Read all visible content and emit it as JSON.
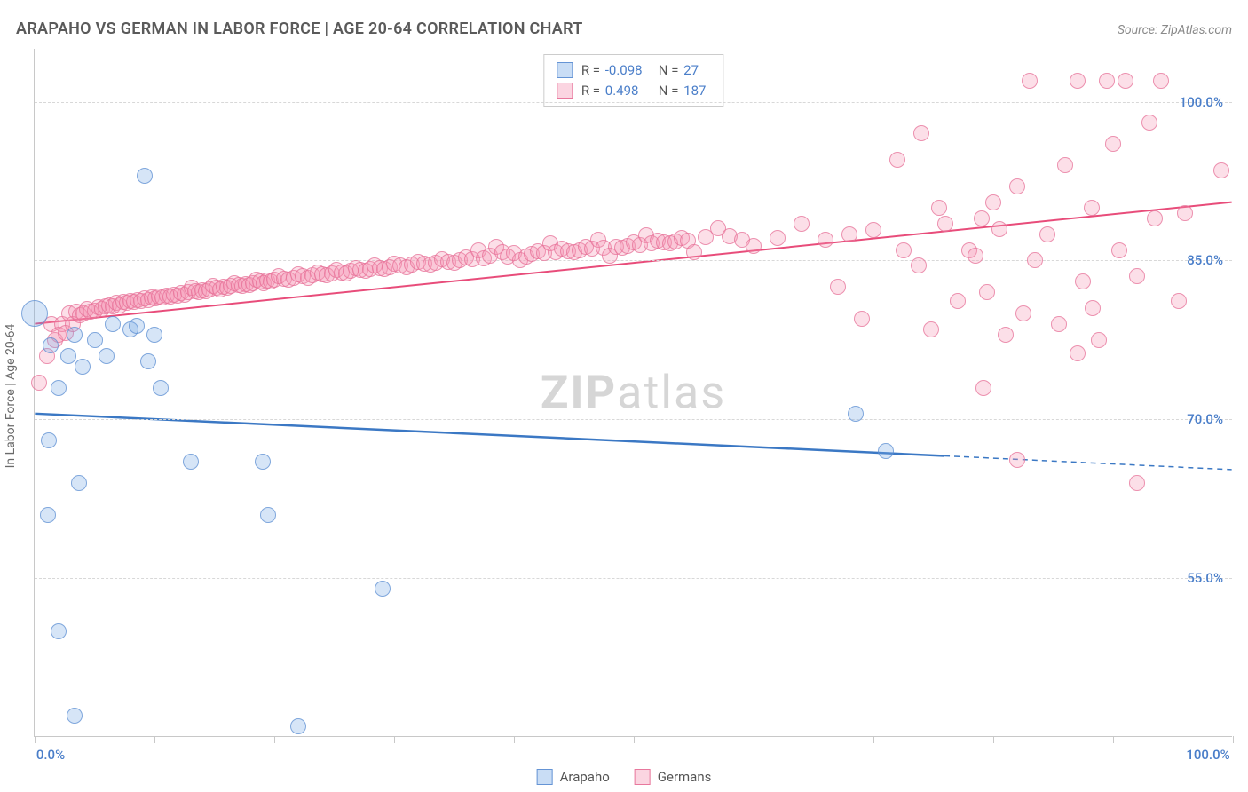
{
  "title": "ARAPAHO VS GERMAN IN LABOR FORCE | AGE 20-64 CORRELATION CHART",
  "source": "Source: ZipAtlas.com",
  "y_axis_title": "In Labor Force | Age 20-64",
  "watermark_a": "ZIP",
  "watermark_b": "atlas",
  "chart": {
    "type": "scatter",
    "xlim": [
      0,
      100
    ],
    "ylim": [
      40,
      105
    ],
    "x_ticks": [
      0,
      10,
      20,
      30,
      40,
      50,
      60,
      70,
      80,
      90,
      100
    ],
    "x_tick_labels": {
      "0": "0.0%",
      "100": "100.0%"
    },
    "y_ticks": [
      55,
      70,
      85,
      100
    ],
    "y_tick_labels": {
      "55": "55.0%",
      "70": "70.0%",
      "85": "85.0%",
      "100": "100.0%"
    },
    "grid_color": "#d8d8d8",
    "axis_color": "#c8c8c8",
    "background_color": "#ffffff",
    "marker_radius": 9,
    "large_marker_radius": 15,
    "series": {
      "arapaho": {
        "label": "Arapaho",
        "color_fill": "rgba(120,170,230,0.3)",
        "color_stroke": "rgba(90,140,210,0.7)",
        "correlation_R": "-0.098",
        "correlation_N": "27",
        "trend_line": {
          "x1": 0,
          "y1": 70.5,
          "x2": 76,
          "y2": 66.5,
          "x3": 100,
          "y3": 65.2,
          "stroke": "#3b78c4",
          "stroke_width": 2.5
        },
        "points": [
          {
            "x": 0,
            "y": 80,
            "r": 15
          },
          {
            "x": 1.3,
            "y": 77
          },
          {
            "x": 1.1,
            "y": 61
          },
          {
            "x": 1.2,
            "y": 68
          },
          {
            "x": 2,
            "y": 50
          },
          {
            "x": 2,
            "y": 73
          },
          {
            "x": 2.8,
            "y": 76
          },
          {
            "x": 3.3,
            "y": 78
          },
          {
            "x": 3.3,
            "y": 42
          },
          {
            "x": 4,
            "y": 75
          },
          {
            "x": 3.7,
            "y": 64
          },
          {
            "x": 5,
            "y": 77.5
          },
          {
            "x": 6,
            "y": 76
          },
          {
            "x": 6.5,
            "y": 79
          },
          {
            "x": 8,
            "y": 78.5
          },
          {
            "x": 8.5,
            "y": 78.8
          },
          {
            "x": 9.2,
            "y": 93
          },
          {
            "x": 9.5,
            "y": 75.5
          },
          {
            "x": 10,
            "y": 78
          },
          {
            "x": 10.5,
            "y": 73
          },
          {
            "x": 13,
            "y": 66
          },
          {
            "x": 19,
            "y": 66
          },
          {
            "x": 19.5,
            "y": 61
          },
          {
            "x": 22,
            "y": 41
          },
          {
            "x": 29,
            "y": 54
          },
          {
            "x": 68.5,
            "y": 70.5
          },
          {
            "x": 71,
            "y": 67
          }
        ]
      },
      "germans": {
        "label": "Germans",
        "color_fill": "rgba(245,150,180,0.3)",
        "color_stroke": "rgba(230,110,150,0.7)",
        "correlation_R": "0.498",
        "correlation_N": "187",
        "trend_line": {
          "x1": 0,
          "y1": 79,
          "x2": 100,
          "y2": 90.5,
          "stroke": "#e84c7a",
          "stroke_width": 2
        },
        "points": [
          {
            "x": 0.4,
            "y": 73.5
          },
          {
            "x": 1,
            "y": 76
          },
          {
            "x": 1.4,
            "y": 79
          },
          {
            "x": 1.7,
            "y": 77.5
          },
          {
            "x": 2,
            "y": 78
          },
          {
            "x": 2.3,
            "y": 79
          },
          {
            "x": 2.6,
            "y": 78.2
          },
          {
            "x": 2.9,
            "y": 80
          },
          {
            "x": 3.2,
            "y": 79
          },
          {
            "x": 3.5,
            "y": 80.2
          },
          {
            "x": 3.8,
            "y": 79.8
          },
          {
            "x": 4.1,
            "y": 80
          },
          {
            "x": 4.4,
            "y": 80.4
          },
          {
            "x": 4.7,
            "y": 80.2
          },
          {
            "x": 5,
            "y": 80.3
          },
          {
            "x": 5.3,
            "y": 80.6
          },
          {
            "x": 5.6,
            "y": 80.4
          },
          {
            "x": 5.9,
            "y": 80.7
          },
          {
            "x": 6.2,
            "y": 80.8
          },
          {
            "x": 6.5,
            "y": 80.7
          },
          {
            "x": 6.8,
            "y": 81
          },
          {
            "x": 7.1,
            "y": 80.8
          },
          {
            "x": 7.4,
            "y": 81.1
          },
          {
            "x": 7.7,
            "y": 81
          },
          {
            "x": 8,
            "y": 81.2
          },
          {
            "x": 8.3,
            "y": 81.1
          },
          {
            "x": 8.6,
            "y": 81.3
          },
          {
            "x": 8.9,
            "y": 81.2
          },
          {
            "x": 9.2,
            "y": 81.4
          },
          {
            "x": 9.5,
            "y": 81.3
          },
          {
            "x": 9.8,
            "y": 81.5
          },
          {
            "x": 10.1,
            "y": 81.4
          },
          {
            "x": 10.4,
            "y": 81.6
          },
          {
            "x": 10.7,
            "y": 81.5
          },
          {
            "x": 11,
            "y": 81.7
          },
          {
            "x": 11.3,
            "y": 81.6
          },
          {
            "x": 11.6,
            "y": 81.8
          },
          {
            "x": 11.9,
            "y": 81.7
          },
          {
            "x": 12.2,
            "y": 81.9
          },
          {
            "x": 12.5,
            "y": 81.8
          },
          {
            "x": 12.8,
            "y": 82
          },
          {
            "x": 13.1,
            "y": 82.4
          },
          {
            "x": 13.4,
            "y": 82.1
          },
          {
            "x": 13.7,
            "y": 82
          },
          {
            "x": 14,
            "y": 82.2
          },
          {
            "x": 14.3,
            "y": 82.1
          },
          {
            "x": 14.6,
            "y": 82.3
          },
          {
            "x": 14.9,
            "y": 82.6
          },
          {
            "x": 15.2,
            "y": 82.4
          },
          {
            "x": 15.5,
            "y": 82.3
          },
          {
            "x": 15.8,
            "y": 82.5
          },
          {
            "x": 16.1,
            "y": 82.4
          },
          {
            "x": 16.4,
            "y": 82.6
          },
          {
            "x": 16.7,
            "y": 82.9
          },
          {
            "x": 17,
            "y": 82.7
          },
          {
            "x": 17.3,
            "y": 82.6
          },
          {
            "x": 17.6,
            "y": 82.8
          },
          {
            "x": 17.9,
            "y": 82.7
          },
          {
            "x": 18.2,
            "y": 82.9
          },
          {
            "x": 18.5,
            "y": 83.2
          },
          {
            "x": 18.8,
            "y": 83
          },
          {
            "x": 19.1,
            "y": 82.9
          },
          {
            "x": 19.4,
            "y": 83.1
          },
          {
            "x": 19.7,
            "y": 83
          },
          {
            "x": 20,
            "y": 83.2
          },
          {
            "x": 20.4,
            "y": 83.5
          },
          {
            "x": 20.8,
            "y": 83.3
          },
          {
            "x": 21.2,
            "y": 83.2
          },
          {
            "x": 21.6,
            "y": 83.4
          },
          {
            "x": 22,
            "y": 83.7
          },
          {
            "x": 22.4,
            "y": 83.5
          },
          {
            "x": 22.8,
            "y": 83.4
          },
          {
            "x": 23.2,
            "y": 83.6
          },
          {
            "x": 23.6,
            "y": 83.9
          },
          {
            "x": 24,
            "y": 83.7
          },
          {
            "x": 24.4,
            "y": 83.6
          },
          {
            "x": 24.8,
            "y": 83.8
          },
          {
            "x": 25.2,
            "y": 84.1
          },
          {
            "x": 25.6,
            "y": 83.9
          },
          {
            "x": 26,
            "y": 83.8
          },
          {
            "x": 26.4,
            "y": 84
          },
          {
            "x": 26.8,
            "y": 84.3
          },
          {
            "x": 27.2,
            "y": 84.1
          },
          {
            "x": 27.6,
            "y": 84
          },
          {
            "x": 28,
            "y": 84.2
          },
          {
            "x": 28.4,
            "y": 84.5
          },
          {
            "x": 28.8,
            "y": 84.3
          },
          {
            "x": 29.2,
            "y": 84.2
          },
          {
            "x": 29.6,
            "y": 84.4
          },
          {
            "x": 30,
            "y": 84.7
          },
          {
            "x": 30.5,
            "y": 84.5
          },
          {
            "x": 31,
            "y": 84.4
          },
          {
            "x": 31.5,
            "y": 84.6
          },
          {
            "x": 32,
            "y": 84.9
          },
          {
            "x": 32.5,
            "y": 84.7
          },
          {
            "x": 33,
            "y": 84.6
          },
          {
            "x": 33.5,
            "y": 84.8
          },
          {
            "x": 34,
            "y": 85.1
          },
          {
            "x": 34.5,
            "y": 84.9
          },
          {
            "x": 35,
            "y": 84.8
          },
          {
            "x": 35.5,
            "y": 85
          },
          {
            "x": 36,
            "y": 85.3
          },
          {
            "x": 36.5,
            "y": 85.1
          },
          {
            "x": 37,
            "y": 86
          },
          {
            "x": 37.5,
            "y": 85.2
          },
          {
            "x": 38,
            "y": 85.5
          },
          {
            "x": 38.5,
            "y": 86.3
          },
          {
            "x": 39,
            "y": 85.8
          },
          {
            "x": 39.5,
            "y": 85.4
          },
          {
            "x": 40,
            "y": 85.7
          },
          {
            "x": 40.5,
            "y": 85
          },
          {
            "x": 41,
            "y": 85.4
          },
          {
            "x": 41.5,
            "y": 85.6
          },
          {
            "x": 42,
            "y": 85.9
          },
          {
            "x": 42.5,
            "y": 85.7
          },
          {
            "x": 43,
            "y": 86.6
          },
          {
            "x": 43.5,
            "y": 85.8
          },
          {
            "x": 44,
            "y": 86.1
          },
          {
            "x": 44.5,
            "y": 85.9
          },
          {
            "x": 45,
            "y": 85.8
          },
          {
            "x": 45.5,
            "y": 86
          },
          {
            "x": 46,
            "y": 86.3
          },
          {
            "x": 46.5,
            "y": 86.1
          },
          {
            "x": 47,
            "y": 87
          },
          {
            "x": 47.5,
            "y": 86.2
          },
          {
            "x": 48,
            "y": 85.5
          },
          {
            "x": 48.5,
            "y": 86.3
          },
          {
            "x": 49,
            "y": 86.2
          },
          {
            "x": 49.5,
            "y": 86.4
          },
          {
            "x": 50,
            "y": 86.7
          },
          {
            "x": 50.5,
            "y": 86.5
          },
          {
            "x": 51,
            "y": 87.4
          },
          {
            "x": 51.5,
            "y": 86.6
          },
          {
            "x": 52,
            "y": 86.9
          },
          {
            "x": 52.5,
            "y": 86.7
          },
          {
            "x": 53,
            "y": 86.6
          },
          {
            "x": 53.5,
            "y": 86.8
          },
          {
            "x": 54,
            "y": 87.1
          },
          {
            "x": 54.5,
            "y": 86.9
          },
          {
            "x": 55,
            "y": 85.8
          },
          {
            "x": 56,
            "y": 87.2
          },
          {
            "x": 57,
            "y": 88.1
          },
          {
            "x": 58,
            "y": 87.3
          },
          {
            "x": 59,
            "y": 87
          },
          {
            "x": 60,
            "y": 86.4
          },
          {
            "x": 62,
            "y": 87.1
          },
          {
            "x": 64,
            "y": 88.5
          },
          {
            "x": 66,
            "y": 87
          },
          {
            "x": 67,
            "y": 82.5
          },
          {
            "x": 68,
            "y": 87.5
          },
          {
            "x": 69,
            "y": 79.5
          },
          {
            "x": 70,
            "y": 87.9
          },
          {
            "x": 72,
            "y": 94.5
          },
          {
            "x": 72.5,
            "y": 86
          },
          {
            "x": 73.8,
            "y": 84.5
          },
          {
            "x": 74,
            "y": 97
          },
          {
            "x": 74.8,
            "y": 78.5
          },
          {
            "x": 75.5,
            "y": 90
          },
          {
            "x": 76,
            "y": 88.5
          },
          {
            "x": 77,
            "y": 81.2
          },
          {
            "x": 78,
            "y": 86
          },
          {
            "x": 78.5,
            "y": 85.5
          },
          {
            "x": 79,
            "y": 89
          },
          {
            "x": 79.2,
            "y": 73
          },
          {
            "x": 79.5,
            "y": 82
          },
          {
            "x": 80,
            "y": 90.5
          },
          {
            "x": 80.5,
            "y": 88
          },
          {
            "x": 81,
            "y": 78
          },
          {
            "x": 82,
            "y": 92
          },
          {
            "x": 82,
            "y": 66.2
          },
          {
            "x": 82.5,
            "y": 80
          },
          {
            "x": 83,
            "y": 102
          },
          {
            "x": 83.5,
            "y": 85
          },
          {
            "x": 84.5,
            "y": 87.5
          },
          {
            "x": 85.5,
            "y": 79
          },
          {
            "x": 86,
            "y": 94
          },
          {
            "x": 87,
            "y": 102
          },
          {
            "x": 87.5,
            "y": 83
          },
          {
            "x": 87,
            "y": 76.2
          },
          {
            "x": 88.2,
            "y": 90
          },
          {
            "x": 88.3,
            "y": 80.5
          },
          {
            "x": 88.8,
            "y": 77.5
          },
          {
            "x": 89.5,
            "y": 102
          },
          {
            "x": 90,
            "y": 96
          },
          {
            "x": 90.5,
            "y": 86
          },
          {
            "x": 91,
            "y": 102
          },
          {
            "x": 92,
            "y": 83.5
          },
          {
            "x": 92,
            "y": 64
          },
          {
            "x": 93,
            "y": 98
          },
          {
            "x": 93.5,
            "y": 89
          },
          {
            "x": 94,
            "y": 102
          },
          {
            "x": 95.5,
            "y": 81.2
          },
          {
            "x": 96,
            "y": 89.5
          },
          {
            "x": 99,
            "y": 93.5
          }
        ]
      }
    }
  },
  "corr_box": {
    "r_label": "R =",
    "n_label": "N ="
  },
  "legend": {
    "arapaho": "Arapaho",
    "germans": "Germans"
  }
}
